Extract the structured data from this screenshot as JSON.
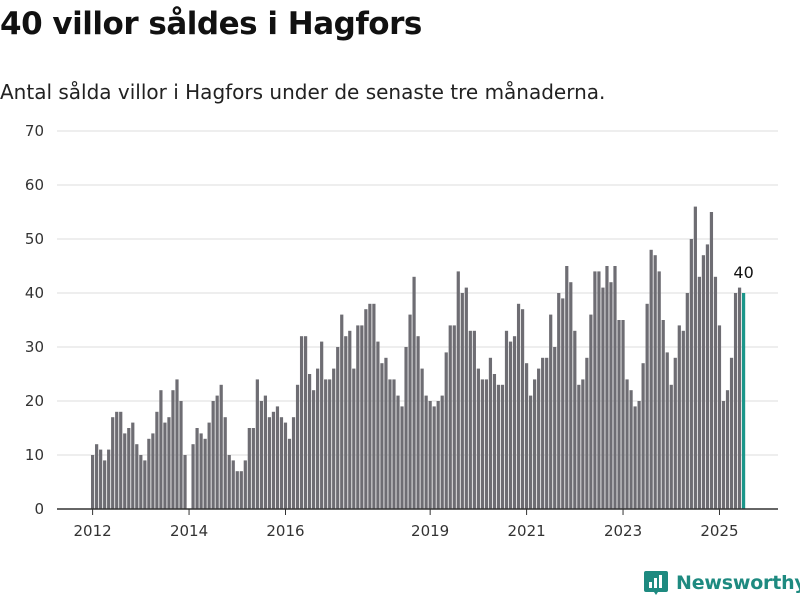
{
  "title": "40 villor såldes i Hagfors",
  "subtitle": "Antal sålda villor i Hagfors under de senaste tre månaderna.",
  "brand": {
    "name": "Newsworthy",
    "icon": "newsworthy-logo-icon",
    "color": "#1e8a80"
  },
  "colors": {
    "bar": "#6e6d73",
    "highlight": "#1b968a",
    "grid": "#dddddd"
  },
  "chart_data": {
    "type": "bar",
    "title": "",
    "xlabel": "",
    "ylabel": "",
    "ylim": [
      0,
      70
    ],
    "y_ticks": [
      "0",
      "10",
      "20",
      "30",
      "40",
      "50",
      "60",
      "70"
    ],
    "x_ticks": [
      {
        "label": "2012",
        "at": "2012-01"
      },
      {
        "label": "2014",
        "at": "2014-01"
      },
      {
        "label": "2016",
        "at": "2016-01"
      },
      {
        "label": "2019",
        "at": "2019-01"
      },
      {
        "label": "2021",
        "at": "2021-01"
      },
      {
        "label": "2023",
        "at": "2023-01"
      },
      {
        "label": "2025",
        "at": "2025-01"
      }
    ],
    "grid": true,
    "series": [
      {
        "start": "2012-01",
        "values": [
          10,
          12,
          11,
          9,
          11,
          17,
          18,
          18,
          14,
          15,
          16,
          12,
          10,
          9,
          13,
          14,
          18,
          22,
          16,
          17,
          22,
          24,
          20,
          10,
          0,
          12,
          15,
          14,
          13,
          16,
          20,
          21,
          23,
          17,
          10,
          9,
          7,
          7,
          9,
          15,
          15,
          24,
          20,
          21,
          17,
          18,
          19,
          17,
          16,
          13,
          17,
          23,
          32,
          32,
          25,
          22,
          26,
          31,
          24,
          24,
          26,
          30,
          36,
          32,
          33,
          26,
          34,
          34,
          37,
          38,
          38,
          31,
          27,
          28,
          24,
          24,
          21,
          19,
          30,
          36,
          43,
          32,
          26,
          21,
          20,
          19,
          20,
          21,
          29,
          34,
          34,
          44,
          40,
          41,
          33,
          33,
          26,
          24,
          24,
          28,
          25,
          23,
          23,
          33,
          31,
          32,
          38,
          37,
          27,
          21,
          24,
          26,
          28,
          28,
          36,
          30,
          40,
          39,
          45,
          42,
          33,
          23,
          24,
          28,
          36,
          44,
          44,
          41,
          45,
          42,
          45,
          35,
          35,
          24,
          22,
          19,
          20,
          27,
          38,
          48,
          47,
          44,
          35,
          29,
          23,
          28,
          34,
          33,
          40,
          50,
          56,
          43,
          47,
          49,
          55,
          43,
          34,
          20,
          22,
          28,
          40,
          41,
          40
        ],
        "highlight_last": true
      }
    ],
    "annotations": [
      {
        "text": "40",
        "at": "2025-07"
      }
    ]
  }
}
